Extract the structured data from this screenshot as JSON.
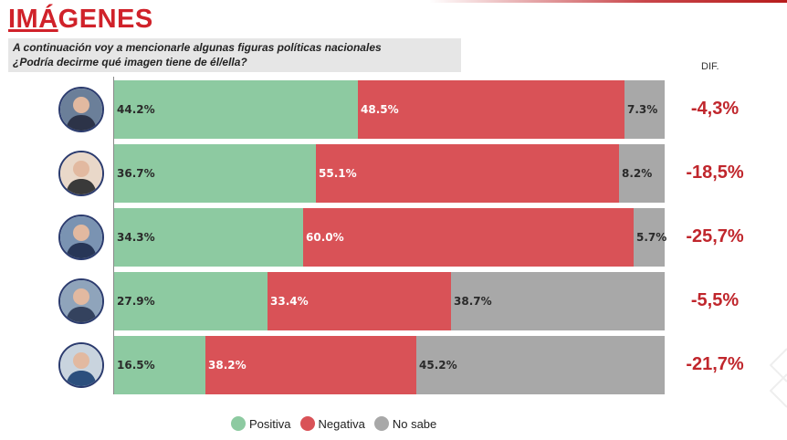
{
  "title": {
    "underlined": "IMÁ",
    "rest": "GENES"
  },
  "subtitle": {
    "line1": "A continuación voy a mencionarle algunas figuras políticas nacionales",
    "line2": "¿Podría decirme qué imagen tiene de él/ella?"
  },
  "dif_header": "DIF.",
  "colors": {
    "positiva": "#8dcaa1",
    "negativa": "#d95257",
    "no_sabe": "#a8a8a8",
    "dif": "#c0262c",
    "title": "#d0222a"
  },
  "legend": [
    {
      "label": "Positiva",
      "color": "#8dcaa1"
    },
    {
      "label": "Negativa",
      "color": "#d95257"
    },
    {
      "label": "No sabe",
      "color": "#a8a8a8"
    }
  ],
  "chart_data": {
    "type": "bar",
    "orientation": "horizontal",
    "stacked": true,
    "series": [
      {
        "name": "Positiva",
        "values": [
          44.2,
          36.7,
          34.3,
          27.9,
          16.5
        ],
        "labels": [
          "44.2%",
          "36.7%",
          "34.3%",
          "27.9%",
          "16.5%"
        ]
      },
      {
        "name": "Negativa",
        "values": [
          48.5,
          55.1,
          60.0,
          33.4,
          38.2
        ],
        "labels": [
          "48.5%",
          "55.1%",
          "60.0%",
          "33.4%",
          "38.2%"
        ]
      },
      {
        "name": "No sabe",
        "values": [
          7.3,
          8.2,
          5.7,
          38.7,
          45.2
        ],
        "labels": [
          "7.3%",
          "8.2%",
          "5.7%",
          "38.7%",
          "45.2%"
        ]
      }
    ],
    "dif": [
      "-4,3%",
      "-18,5%",
      "-25,7%",
      "-5,5%",
      "-21,7%"
    ],
    "legend_position": "bottom"
  }
}
